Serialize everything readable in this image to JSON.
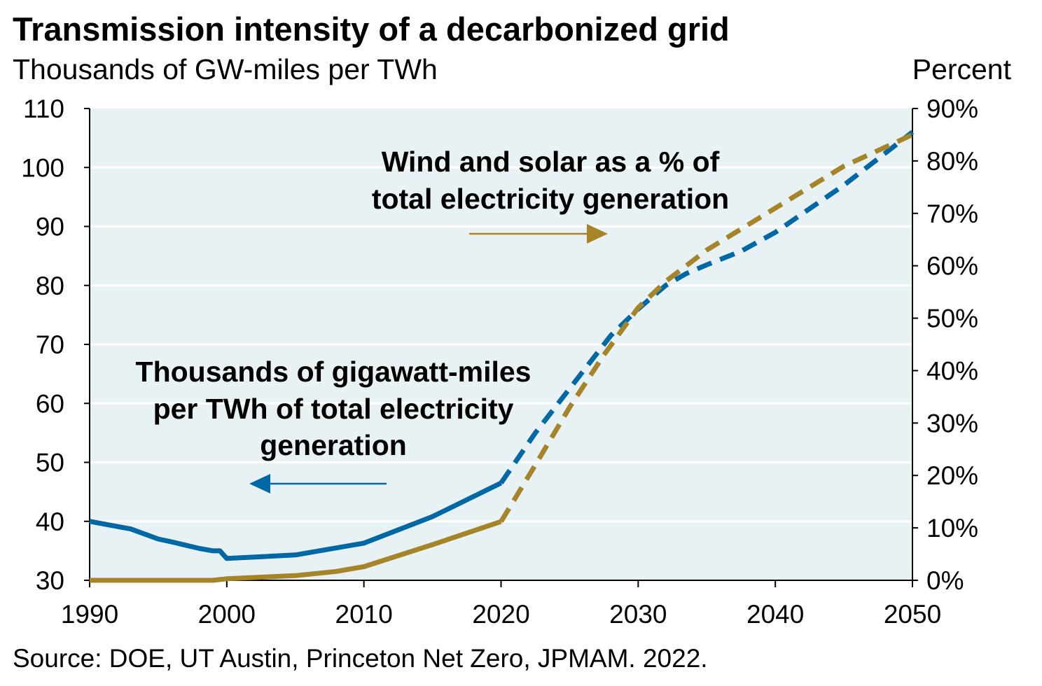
{
  "chart_data": {
    "type": "line",
    "title": "Transmission intensity of a decarbonized grid",
    "ylabel": "Thousands of GW-miles per TWh",
    "y2label": "Percent",
    "xlim": [
      1990,
      2050
    ],
    "ylim": [
      30,
      110
    ],
    "y2lim": [
      0,
      90
    ],
    "x_ticks": [
      "1990",
      "2000",
      "2010",
      "2020",
      "2030",
      "2040",
      "2050"
    ],
    "y_ticks": [
      "30",
      "40",
      "50",
      "60",
      "70",
      "80",
      "90",
      "100",
      "110"
    ],
    "y2_ticks": [
      "0%",
      "10%",
      "20%",
      "30%",
      "40%",
      "50%",
      "60%",
      "70%",
      "80%",
      "90%"
    ],
    "grid": true,
    "series": [
      {
        "name": "Thousands of gigawatt-miles per TWh of total electricity generation",
        "axis": "left",
        "color": "#0068A5",
        "historical": {
          "x": [
            1990,
            1993,
            1995,
            1996,
            1998,
            1999,
            1999.5,
            2000,
            2005,
            2010,
            2015,
            2020
          ],
          "y": [
            40,
            38.7,
            37,
            36.5,
            35.4,
            35,
            35,
            33.7,
            34.3,
            36.3,
            40.8,
            46.5
          ]
        },
        "projected": {
          "x": [
            2020,
            2022.5,
            2025,
            2028,
            2030,
            2032,
            2033.5,
            2035,
            2037.5,
            2040,
            2045,
            2050
          ],
          "y": [
            46.5,
            55,
            62.5,
            71.5,
            76,
            80,
            82,
            83.5,
            85.8,
            89,
            97,
            106
          ]
        }
      },
      {
        "name": "Wind and solar as a % of total electricity generation",
        "axis": "right",
        "color": "#A68428",
        "historical": {
          "x": [
            1990,
            1999,
            2000,
            2005,
            2008,
            2010,
            2015,
            2020
          ],
          "y": [
            0,
            0,
            0.3,
            0.9,
            1.7,
            2.6,
            6.8,
            11.2
          ]
        },
        "projected": {
          "x": [
            2020,
            2022.5,
            2025,
            2027.5,
            2030,
            2032,
            2033.5,
            2035,
            2037.5,
            2040,
            2045,
            2050
          ],
          "y": [
            11.2,
            22,
            33,
            43,
            52,
            57,
            60,
            63,
            67,
            71,
            79,
            85
          ]
        }
      }
    ],
    "annotations": {
      "gold_line1": "Wind and solar as a % of",
      "gold_line2": "total electricity generation",
      "blue_line1": "Thousands of gigawatt-miles",
      "blue_line2": "per TWh of total electricity",
      "blue_line3": "generation"
    },
    "source": "Source: DOE, UT Austin, Princeton Net Zero, JPMAM. 2022."
  }
}
